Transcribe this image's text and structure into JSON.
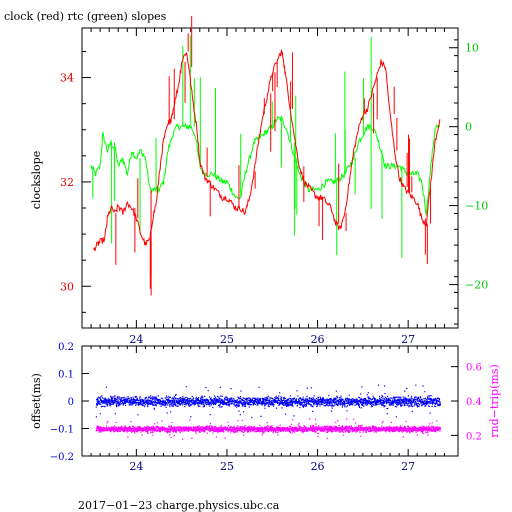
{
  "chart_data": [
    {
      "type": "line",
      "title": "clock (red) rtc (green) slopes",
      "ylabel": "clockslope",
      "xlim": [
        23.4,
        27.55
      ],
      "ylim": [
        29.2,
        34.95
      ],
      "y2lim": [
        -25.5,
        12.5
      ],
      "x_ticks": [
        {
          "v": 24,
          "label": "24"
        },
        {
          "v": 25,
          "label": "25"
        },
        {
          "v": 26,
          "label": "26"
        },
        {
          "v": 27,
          "label": "27"
        }
      ],
      "y_ticks": [
        {
          "v": 30,
          "label": "30"
        },
        {
          "v": 32,
          "label": "32"
        },
        {
          "v": 34,
          "label": "34"
        }
      ],
      "y2_ticks": [
        {
          "v": 10,
          "label": "10"
        },
        {
          "v": 0,
          "label": "0"
        },
        {
          "v": -10,
          "label": "−10"
        },
        {
          "v": -20,
          "label": "−20"
        }
      ],
      "colors": {
        "left": "#e00000",
        "right": "#00cc00"
      },
      "series": [
        {
          "axis": "left",
          "color": "#ff0000",
          "x": [
            23.53,
            23.57,
            23.6,
            23.65,
            23.68,
            23.72,
            23.77,
            23.8,
            23.85,
            23.9,
            23.95,
            24.0,
            24.05,
            24.1,
            24.15,
            24.18,
            24.22,
            24.27,
            24.3,
            24.35,
            24.38,
            24.42,
            24.47,
            24.5,
            24.55,
            24.58,
            24.62,
            24.67,
            24.7,
            24.75,
            24.8,
            24.85,
            24.9,
            24.95,
            25.0,
            25.05,
            25.1,
            25.15,
            25.2,
            25.25,
            25.3,
            25.35,
            25.4,
            25.45,
            25.5,
            25.55,
            25.6,
            25.62,
            25.65,
            25.7,
            25.75,
            25.8,
            25.85,
            25.9,
            25.95,
            26.0,
            26.05,
            26.1,
            26.15,
            26.2,
            26.25,
            26.3,
            26.35,
            26.4,
            26.45,
            26.5,
            26.55,
            26.6,
            26.65,
            26.7,
            26.75,
            26.8,
            26.85,
            26.9,
            26.95,
            27.0,
            27.05,
            27.1,
            27.15,
            27.2,
            27.25,
            27.3,
            27.35
          ],
          "y": [
            30.7,
            30.8,
            30.85,
            30.9,
            31.3,
            31.5,
            31.4,
            31.55,
            31.4,
            31.6,
            31.5,
            31.3,
            31.0,
            30.8,
            30.9,
            31.3,
            31.6,
            32.4,
            32.8,
            33.1,
            33.2,
            33.5,
            33.9,
            34.3,
            34.5,
            34.2,
            33.6,
            33.0,
            32.4,
            32.1,
            32.0,
            31.9,
            31.8,
            31.7,
            31.7,
            31.6,
            31.5,
            31.5,
            31.4,
            31.7,
            32.2,
            32.8,
            33.3,
            33.7,
            34.1,
            34.3,
            34.5,
            34.4,
            34.0,
            33.4,
            32.8,
            32.3,
            32.0,
            31.9,
            31.8,
            31.7,
            31.7,
            31.6,
            31.5,
            31.2,
            31.1,
            31.4,
            32.0,
            32.6,
            33.0,
            33.3,
            33.4,
            33.7,
            34.0,
            34.3,
            34.2,
            33.3,
            32.6,
            32.1,
            31.9,
            31.8,
            31.7,
            31.6,
            31.3,
            31.2,
            32.0,
            32.8,
            33.2
          ]
        },
        {
          "axis": "right",
          "color": "#00ff00",
          "x": [
            23.5,
            23.55,
            23.6,
            23.63,
            23.68,
            23.72,
            23.77,
            23.8,
            23.85,
            23.9,
            23.95,
            24.0,
            24.05,
            24.1,
            24.15,
            24.2,
            24.25,
            24.3,
            24.35,
            24.4,
            24.45,
            24.5,
            24.55,
            24.6,
            24.65,
            24.7,
            24.75,
            24.8,
            24.85,
            24.9,
            24.95,
            25.0,
            25.05,
            25.1,
            25.15,
            25.2,
            25.25,
            25.3,
            25.35,
            25.4,
            25.45,
            25.5,
            25.55,
            25.6,
            25.65,
            25.7,
            25.75,
            25.8,
            25.85,
            25.9,
            25.95,
            26.0,
            26.05,
            26.1,
            26.15,
            26.2,
            26.25,
            26.3,
            26.35,
            26.4,
            26.45,
            26.5,
            26.55,
            26.6,
            26.65,
            26.7,
            26.75,
            26.8,
            26.85,
            26.9,
            26.95,
            27.0,
            27.05,
            27.1,
            27.15,
            27.2,
            27.25,
            27.3,
            27.35
          ],
          "y": [
            -5,
            -6,
            -5,
            -1,
            -3,
            -2,
            -3,
            -5,
            -4,
            -6,
            -3,
            -4,
            -3,
            -4,
            -8,
            -8,
            -8,
            -7,
            -3,
            -1,
            0,
            0,
            0,
            0,
            -1,
            -5,
            -6,
            -6,
            -6,
            -6.5,
            -7,
            -7,
            -8,
            -9,
            -9,
            -6,
            -4,
            -2,
            -1.5,
            -1,
            -0.5,
            0,
            1,
            1,
            0,
            -2,
            -4,
            -6,
            -7,
            -8,
            -8,
            -8,
            -7.5,
            -7,
            -7,
            -7,
            -6.5,
            -6,
            -5,
            -4,
            -2,
            -1,
            0,
            0,
            -1,
            -3,
            -5,
            -5,
            -5,
            -5,
            -5.5,
            -6,
            -6,
            -6,
            -7,
            -11,
            -5,
            0,
            0
          ]
        }
      ]
    },
    {
      "type": "scatter",
      "ylabel": "offset(ms)",
      "y2label": "rnd−trip(ms)",
      "xlim": [
        23.4,
        27.55
      ],
      "ylim": [
        -0.2,
        0.2
      ],
      "y2lim": [
        0.08,
        0.72
      ],
      "x_ticks": [
        {
          "v": 24,
          "label": "24"
        },
        {
          "v": 25,
          "label": "25"
        },
        {
          "v": 26,
          "label": "26"
        },
        {
          "v": 27,
          "label": "27"
        }
      ],
      "y_ticks": [
        {
          "v": 0.2,
          "label": "0.2"
        },
        {
          "v": 0.1,
          "label": "0.1"
        },
        {
          "v": 0,
          "label": "0"
        },
        {
          "v": -0.1,
          "label": "−0.1"
        },
        {
          "v": -0.2,
          "label": "−0.2"
        }
      ],
      "y2_ticks": [
        {
          "v": 0.6,
          "label": "0.6"
        },
        {
          "v": 0.4,
          "label": "0.4"
        },
        {
          "v": 0.2,
          "label": "0.2"
        }
      ],
      "colors": {
        "left": "#0000cc",
        "right": "#ff00ff"
      },
      "series": [
        {
          "axis": "left",
          "color": "#0000ff",
          "x_range": [
            23.55,
            27.35
          ],
          "center": 0.0,
          "spread": 0.012
        },
        {
          "axis": "right",
          "color": "#ff00ff",
          "x_range": [
            23.55,
            27.35
          ],
          "center": 0.24,
          "spread": 0.012
        }
      ]
    }
  ],
  "footer": "2017−01−23 charge.physics.ubc.ca"
}
